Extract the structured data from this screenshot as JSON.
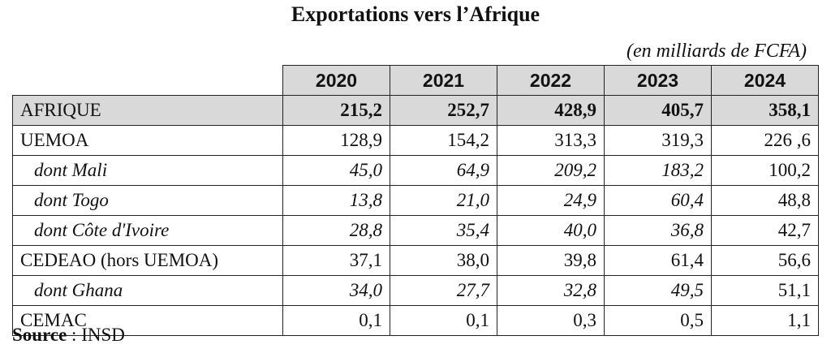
{
  "title": "Exportations vers l’Afrique",
  "unit": "(en milliards de FCFA)",
  "years": [
    "2020",
    "2021",
    "2022",
    "2023",
    "2024"
  ],
  "rows": [
    {
      "label": "AFRIQUE",
      "values": [
        "215,2",
        "252,7",
        "428,9",
        "405,7",
        "358,1"
      ]
    },
    {
      "label": "UEMOA",
      "values": [
        "128,9",
        "154,2",
        "313,3",
        "319,3",
        "226 ,6"
      ]
    },
    {
      "label": "dont Mali",
      "values": [
        "45,0",
        "64,9",
        "209,2",
        "183,2",
        "100,2"
      ]
    },
    {
      "label": "dont Togo",
      "values": [
        "13,8",
        "21,0",
        "24,9",
        "60,4",
        "48,8"
      ]
    },
    {
      "label": "dont Côte d'Ivoire",
      "values": [
        "28,8",
        "35,4",
        "40,0",
        "36,8",
        "42,7"
      ]
    },
    {
      "label": "CEDEAO (hors UEMOA)",
      "values": [
        "37,1",
        "38,0",
        "39,8",
        "61,4",
        "56,6"
      ]
    },
    {
      "label": "dont Ghana",
      "values": [
        "34,0",
        "27,7",
        "32,8",
        "49,5",
        "51,1"
      ]
    },
    {
      "label": "CEMAC",
      "values": [
        "0,1",
        "0,1",
        "0,3",
        "0,5",
        "1,1"
      ]
    }
  ],
  "source": {
    "label": "Source",
    "separator": " : ",
    "value": "INSD"
  }
}
